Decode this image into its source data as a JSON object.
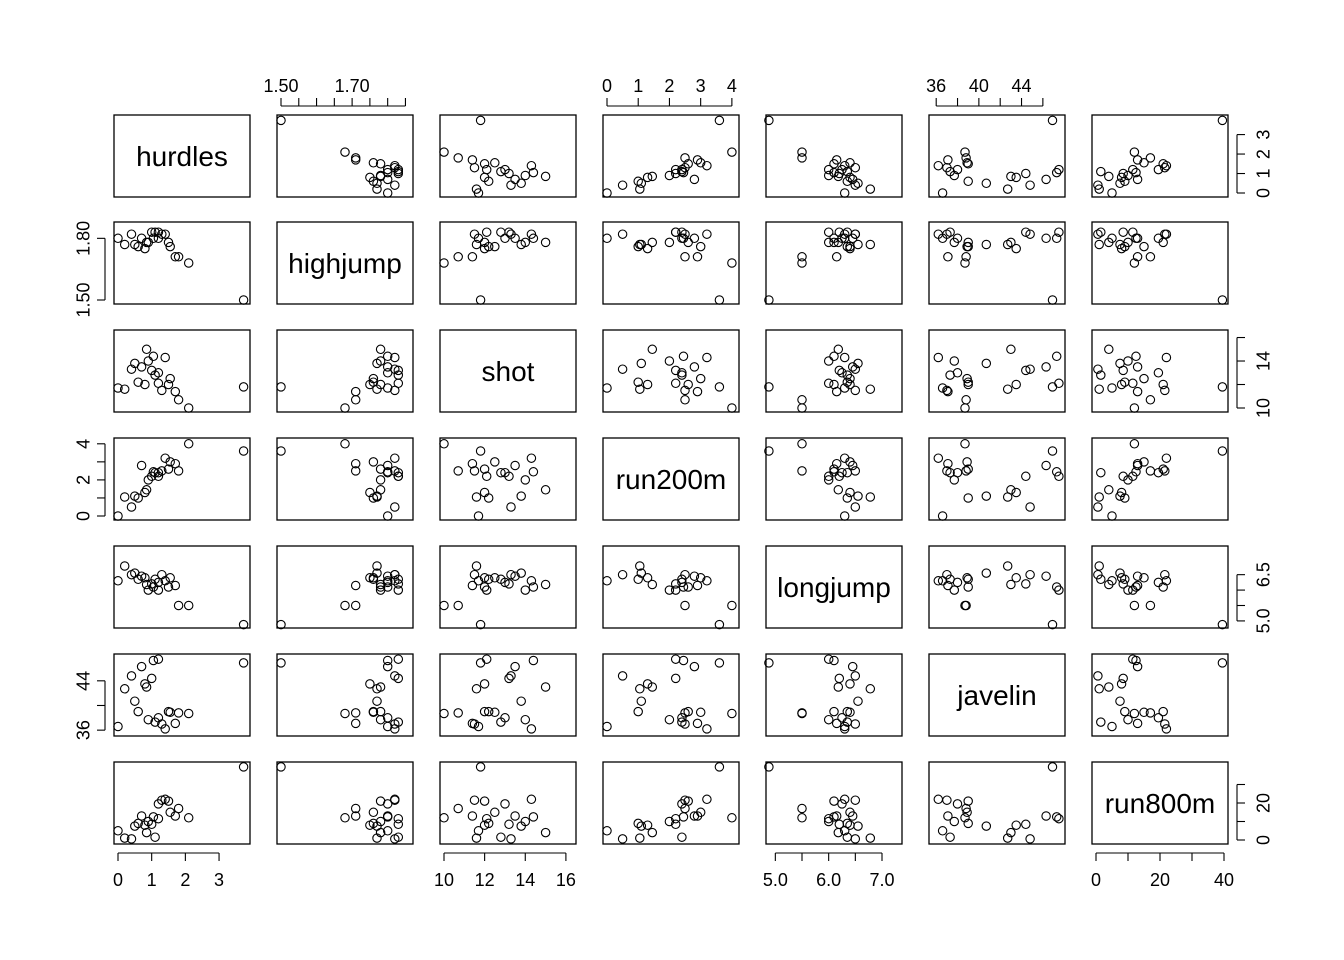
{
  "chart_data": {
    "type": "scatter",
    "subtype": "pairs-scatterplot-matrix",
    "variables": [
      "hurdles",
      "highjump",
      "shot",
      "run200m",
      "longjump",
      "javelin",
      "run800m"
    ],
    "axis": {
      "hurdles": {
        "range": [
          0,
          3.8
        ],
        "ticks": [
          0,
          1,
          2,
          3
        ],
        "tick_labels": [
          "0",
          "1",
          "2",
          "3"
        ]
      },
      "highjump": {
        "range": [
          1.5,
          1.86
        ],
        "ticks": [
          1.5,
          1.55,
          1.6,
          1.65,
          1.7,
          1.75,
          1.8,
          1.85
        ],
        "tick_labels": [
          "1.50",
          "",
          "",
          "",
          "1.70",
          "",
          "",
          ""
        ],
        "left_ticks": [
          1.5,
          1.8
        ],
        "left_tick_labels": [
          "1.50",
          "1.80"
        ]
      },
      "shot": {
        "range": [
          10,
          16.3
        ],
        "ticks": [
          10,
          12,
          14,
          16
        ],
        "tick_labels": [
          "10",
          "12",
          "14",
          "16"
        ],
        "right_ticks": [
          10,
          14
        ],
        "right_tick_labels": [
          "10",
          "14"
        ],
        "right_minor_ticks": [
          12,
          16
        ]
      },
      "run200m": {
        "range": [
          0,
          4.1
        ],
        "ticks": [
          0,
          1,
          2,
          3,
          4
        ],
        "tick_labels": [
          "0",
          "1",
          "2",
          "3",
          "4"
        ],
        "left_ticks": [
          0,
          2,
          4
        ],
        "left_tick_labels": [
          "0",
          "2",
          "4"
        ],
        "left_minor_ticks": [
          1,
          3
        ]
      },
      "longjump": {
        "range": [
          4.9,
          7.3
        ],
        "ticks": [
          5.0,
          5.5,
          6.0,
          6.5,
          7.0
        ],
        "tick_labels": [
          "5.0",
          "",
          "6.0",
          "",
          "7.0"
        ],
        "right_ticks": [
          5.0,
          5.5,
          6.0,
          6.5
        ],
        "right_tick_labels": [
          "5.0",
          "",
          "",
          "6.5"
        ]
      },
      "javelin": {
        "range": [
          35.7,
          47.7
        ],
        "ticks": [
          36,
          38,
          40,
          42,
          44,
          46
        ],
        "tick_labels": [
          "36",
          "",
          "40",
          "",
          "44",
          ""
        ],
        "left_ticks": [
          36,
          40,
          44
        ],
        "left_tick_labels": [
          "36",
          "",
          "44"
        ]
      },
      "run800m": {
        "range": [
          0,
          40
        ],
        "ticks": [
          0,
          10,
          20,
          30,
          40
        ],
        "tick_labels": [
          "0",
          "",
          "20",
          "",
          "40"
        ],
        "right_ticks": [
          0,
          10,
          20,
          30
        ],
        "right_tick_labels": [
          "0",
          "",
          "20",
          ""
        ]
      }
    },
    "observations": [
      {
        "hurdles": 0.0,
        "highjump": 1.8,
        "shot": 11.7,
        "run200m": 0.0,
        "longjump": 6.3,
        "javelin": 36.6,
        "run800m": 5.0
      },
      {
        "hurdles": 0.2,
        "highjump": 1.77,
        "shot": 11.6,
        "run200m": 1.05,
        "longjump": 6.78,
        "javelin": 42.7,
        "run800m": 1.0
      },
      {
        "hurdles": 0.4,
        "highjump": 1.82,
        "shot": 13.3,
        "run200m": 0.5,
        "longjump": 6.5,
        "javelin": 44.8,
        "run800m": 0.6
      },
      {
        "hurdles": 0.5,
        "highjump": 1.77,
        "shot": 13.8,
        "run200m": 1.1,
        "longjump": 6.55,
        "javelin": 40.7,
        "run800m": 7.5
      },
      {
        "hurdles": 0.6,
        "highjump": 1.76,
        "shot": 12.2,
        "run200m": 1.0,
        "longjump": 6.35,
        "javelin": 39.0,
        "run800m": 9.0
      },
      {
        "hurdles": 0.7,
        "highjump": 1.8,
        "shot": 13.5,
        "run200m": 2.8,
        "longjump": 6.45,
        "javelin": 46.3,
        "run800m": 13.0
      },
      {
        "hurdles": 0.8,
        "highjump": 1.75,
        "shot": 12.0,
        "run200m": 1.3,
        "longjump": 6.4,
        "javelin": 43.5,
        "run800m": 8.0
      },
      {
        "hurdles": 0.85,
        "highjump": 1.78,
        "shot": 15.0,
        "run200m": 1.45,
        "longjump": 6.18,
        "javelin": 43.0,
        "run800m": 4.0
      },
      {
        "hurdles": 0.9,
        "highjump": 1.78,
        "shot": 14.0,
        "run200m": 2.0,
        "longjump": 6.0,
        "javelin": 37.7,
        "run800m": 10.0
      },
      {
        "hurdles": 1.0,
        "highjump": 1.83,
        "shot": 13.2,
        "run200m": 2.2,
        "longjump": 6.2,
        "javelin": 44.4,
        "run800m": 8.5
      },
      {
        "hurdles": 1.05,
        "highjump": 1.8,
        "shot": 14.4,
        "run200m": 2.45,
        "longjump": 6.1,
        "javelin": 47.3,
        "run800m": 12.5
      },
      {
        "hurdles": 1.1,
        "highjump": 1.83,
        "shot": 12.8,
        "run200m": 2.4,
        "longjump": 6.35,
        "javelin": 37.3,
        "run800m": 1.5
      },
      {
        "hurdles": 1.2,
        "highjump": 1.83,
        "shot": 12.1,
        "run200m": 2.2,
        "longjump": 6.0,
        "javelin": 47.5,
        "run800m": 11.5
      },
      {
        "hurdles": 1.2,
        "highjump": 1.8,
        "shot": 13.0,
        "run200m": 2.4,
        "longjump": 6.25,
        "javelin": 38.0,
        "run800m": 19.5
      },
      {
        "hurdles": 1.3,
        "highjump": 1.82,
        "shot": 11.5,
        "run200m": 2.5,
        "longjump": 6.5,
        "javelin": 37.0,
        "run800m": 21.5
      },
      {
        "hurdles": 1.4,
        "highjump": 1.82,
        "shot": 14.3,
        "run200m": 3.2,
        "longjump": 6.3,
        "javelin": 36.2,
        "run800m": 22.0
      },
      {
        "hurdles": 1.5,
        "highjump": 1.78,
        "shot": 12.0,
        "run200m": 2.6,
        "longjump": 6.1,
        "javelin": 39.0,
        "run800m": 21.0
      },
      {
        "hurdles": 1.55,
        "highjump": 1.76,
        "shot": 12.5,
        "run200m": 3.0,
        "longjump": 6.4,
        "javelin": 38.9,
        "run800m": 15.0
      },
      {
        "hurdles": 1.7,
        "highjump": 1.71,
        "shot": 11.4,
        "run200m": 2.9,
        "longjump": 6.15,
        "javelin": 37.1,
        "run800m": 13.0
      },
      {
        "hurdles": 1.8,
        "highjump": 1.71,
        "shot": 10.7,
        "run200m": 2.5,
        "longjump": 5.5,
        "javelin": 38.8,
        "run800m": 17.0
      },
      {
        "hurdles": 2.1,
        "highjump": 1.68,
        "shot": 10.0,
        "run200m": 4.0,
        "longjump": 5.5,
        "javelin": 38.7,
        "run800m": 12.0
      },
      {
        "hurdles": 3.73,
        "highjump": 1.5,
        "shot": 11.8,
        "run200m": 3.6,
        "longjump": 4.88,
        "javelin": 46.9,
        "run800m": 39.5
      }
    ]
  }
}
